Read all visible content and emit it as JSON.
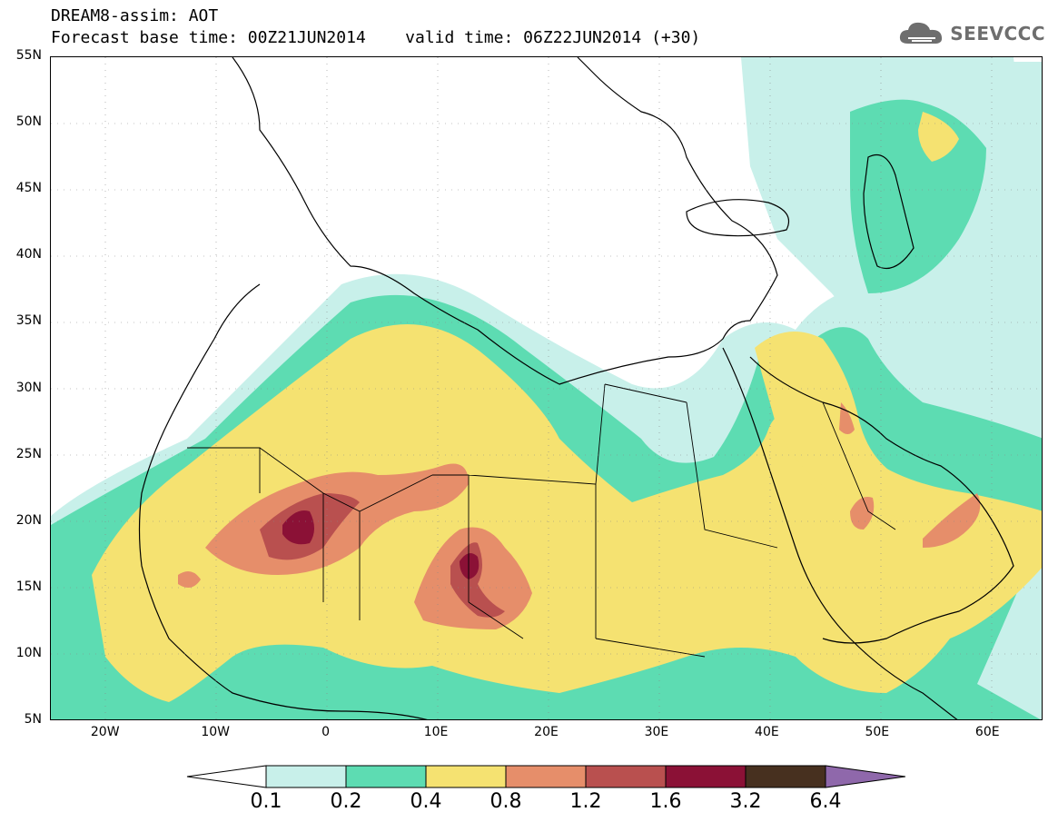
{
  "header": {
    "title": "DREAM8-assim: AOT",
    "base_time_label": "Forecast base time: 00Z21JUN2014",
    "valid_time_label": "valid time: 06Z22JUN2014 (+30)"
  },
  "brand": {
    "name": "SEEVCCC",
    "icon": "cloud-icon"
  },
  "map": {
    "region": "North Africa, Middle East, Europe",
    "lon_range": [
      -25,
      65
    ],
    "lat_range": [
      5,
      55
    ]
  },
  "axes": {
    "lat_labels": [
      "55N",
      "50N",
      "45N",
      "40N",
      "35N",
      "30N",
      "25N",
      "20N",
      "15N",
      "10N",
      "5N"
    ],
    "lon_labels": [
      "20W",
      "10W",
      "0",
      "10E",
      "20E",
      "30E",
      "40E",
      "50E",
      "60E"
    ]
  },
  "colorbar": {
    "labels": [
      "0.1",
      "0.2",
      "0.4",
      "0.8",
      "1.2",
      "1.6",
      "3.2",
      "6.4"
    ],
    "colors": [
      "#c8f0ea",
      "#5ddcb2",
      "#f5e271",
      "#e68e6a",
      "#b9504f",
      "#8b1136",
      "#47301f"
    ],
    "under_color": "#ffffff",
    "over_color": "#8f68ab"
  }
}
